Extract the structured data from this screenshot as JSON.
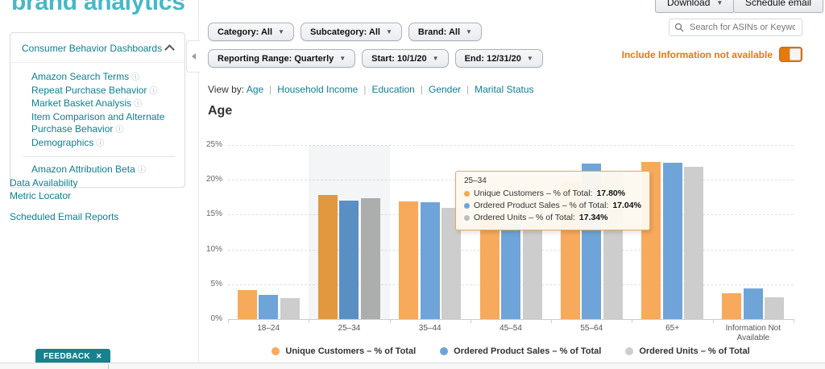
{
  "logo": {
    "text": "brand analytics"
  },
  "header": {
    "download_label": "Download",
    "schedule_email_label": "Schedule email"
  },
  "search": {
    "placeholder": "Search for ASINs or Keywords"
  },
  "sidebar": {
    "panel_title": "Consumer Behavior Dashboards",
    "items": [
      {
        "label": "Amazon Search Terms",
        "info": true
      },
      {
        "label": "Repeat Purchase Behavior",
        "info": true
      },
      {
        "label": "Market Basket Analysis",
        "info": true
      },
      {
        "label": "Item Comparison and Alternate Purchase Behavior",
        "info": true
      },
      {
        "label": "Demographics",
        "info": true
      }
    ],
    "beta_item": {
      "label": "Amazon Attribution Beta",
      "info": true
    },
    "links": [
      "Data Availability",
      "Metric Locator"
    ],
    "scheduled": "Scheduled Email Reports",
    "feedback_label": "FEEDBACK",
    "feedback_close": "✕"
  },
  "filters": {
    "row1": [
      "Category: All",
      "Subcategory: All",
      "Brand: All"
    ],
    "row2": [
      "Reporting Range: Quarterly",
      "Start: 10/1/20",
      "End: 12/31/20"
    ],
    "include_label": "Include Information not available",
    "include_toggle_on": true,
    "accent_orange": "#E47911"
  },
  "view_by": {
    "label": "View by:",
    "options": [
      "Age",
      "Household Income",
      "Education",
      "Gender",
      "Marital Status"
    ],
    "selected": "Age",
    "link_color": "#0E7E90"
  },
  "chart_data": {
    "type": "bar",
    "title": "Age",
    "categories": [
      "18–24",
      "25–34",
      "35–44",
      "45–54",
      "55–64",
      "65+",
      "Information Not Available"
    ],
    "series": [
      {
        "name": "Unique Customers – % of Total",
        "color": "#F7A95C",
        "hover_color": "#E2983F",
        "values": [
          4.2,
          17.8,
          16.9,
          14.6,
          19.8,
          22.6,
          3.7
        ]
      },
      {
        "name": "Ordered Product Sales – % of Total",
        "color": "#6FA4D8",
        "hover_color": "#5B8FC4",
        "values": [
          3.5,
          17.04,
          16.8,
          13.7,
          22.3,
          22.4,
          4.4
        ]
      },
      {
        "name": "Ordered Units – % of Total",
        "color": "#CDCDCD",
        "hover_color": "#ADADAD",
        "values": [
          3.0,
          17.34,
          16.0,
          14.0,
          21.2,
          21.9,
          3.1
        ]
      }
    ],
    "hover_category_index": 1,
    "ylim": [
      0,
      25
    ],
    "ytick_labels": [
      "0%",
      "5%",
      "10%",
      "15%",
      "20%",
      "25%"
    ],
    "xlabel": "",
    "ylabel": "",
    "grid": "horizontal-dashed",
    "legend_position": "bottom"
  },
  "tooltip": {
    "title": "25–34",
    "rows": [
      {
        "label": "Unique Customers – % of Total",
        "value": "17.80%",
        "color": "#F5A94F"
      },
      {
        "label": "Ordered Product Sales – % of Total",
        "value": "17.04%",
        "color": "#6FA4D8"
      },
      {
        "label": "Ordered Units – % of Total",
        "value": "17.34%",
        "color": "#BDBDBD"
      }
    ]
  }
}
